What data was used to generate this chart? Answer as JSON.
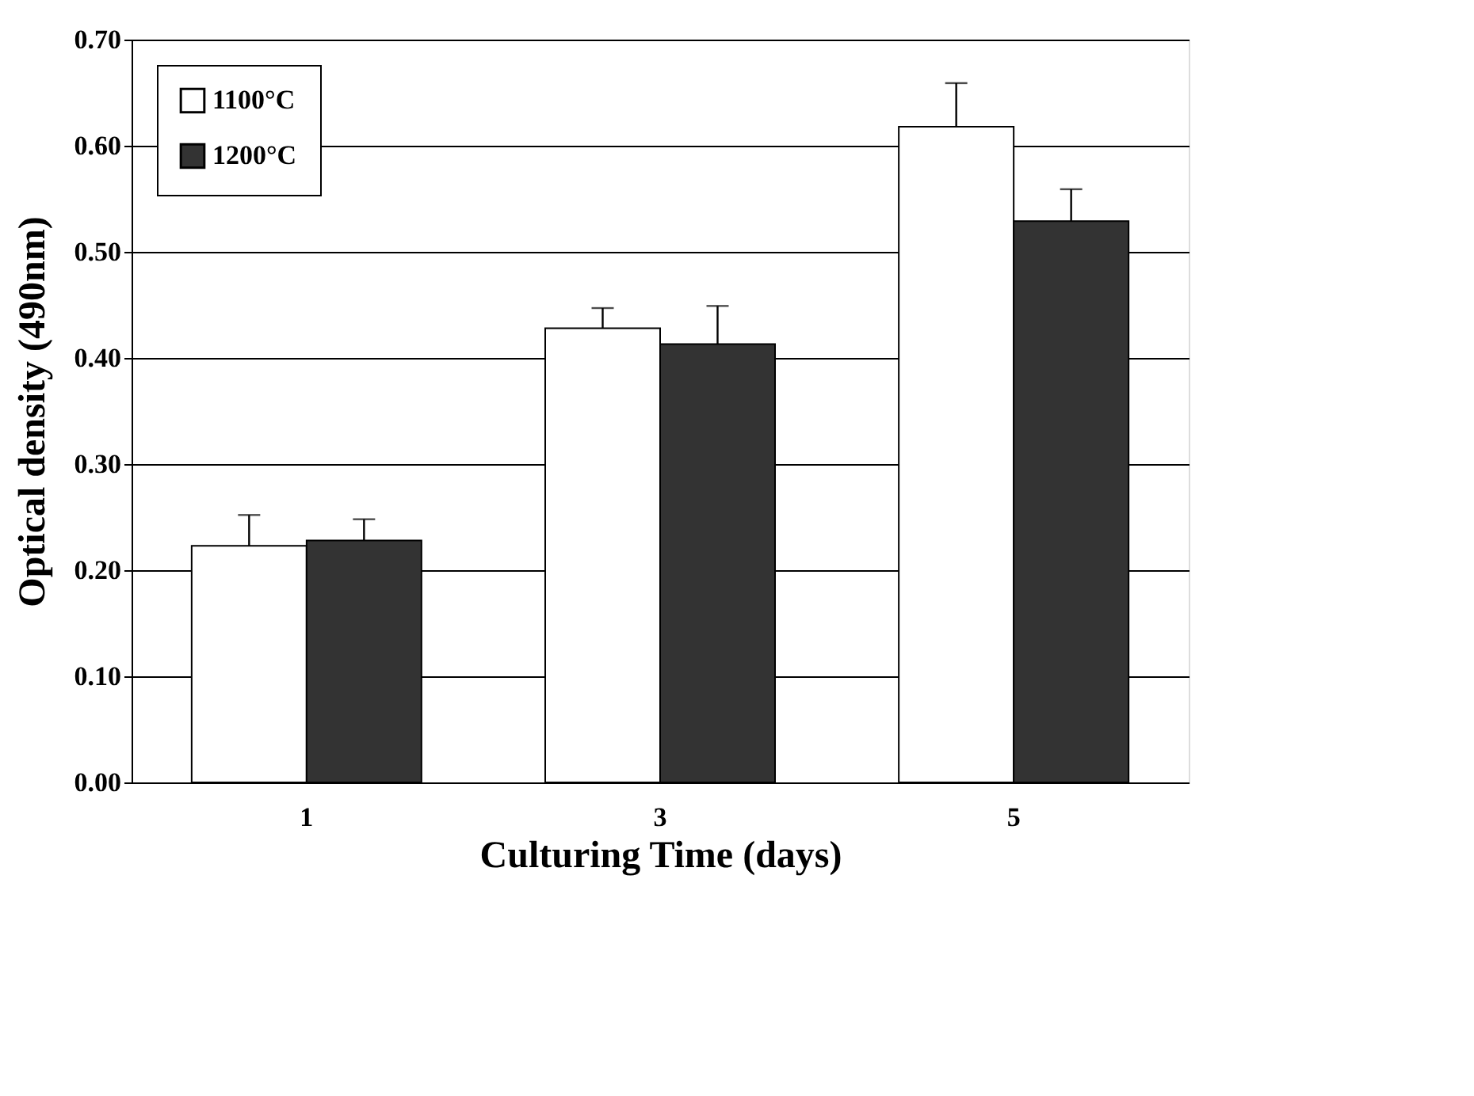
{
  "chart_data": {
    "type": "bar",
    "xlabel": "Culturing Time (days)",
    "ylabel": "Optical density (490nm)",
    "categories": [
      "1",
      "3",
      "5"
    ],
    "series": [
      {
        "name": "1100°C",
        "color": "#ffffff",
        "values": [
          0.223,
          0.428,
          0.618
        ],
        "errors": [
          [
            0.223,
            0.252
          ],
          [
            0.428,
            0.447
          ],
          [
            0.618,
            0.659
          ]
        ]
      },
      {
        "name": "1200°C",
        "color": "#333333",
        "values": [
          0.228,
          0.413,
          0.529
        ],
        "errors": [
          [
            0.228,
            0.248
          ],
          [
            0.413,
            0.449
          ],
          [
            0.529,
            0.559
          ]
        ]
      }
    ],
    "ylim": [
      0,
      0.7
    ],
    "yticks": [
      {
        "value": 0,
        "label": "0.00"
      },
      {
        "value": 0.1,
        "label": "0.10"
      },
      {
        "value": 0.2,
        "label": "0.20"
      },
      {
        "value": 0.3,
        "label": "0.30"
      },
      {
        "value": 0.4,
        "label": "0.40"
      },
      {
        "value": 0.5,
        "label": "0.50"
      },
      {
        "value": 0.6,
        "label": "0.60"
      },
      {
        "value": 0.7,
        "label": "0.70"
      }
    ],
    "grid": "y",
    "legend": "top left"
  }
}
